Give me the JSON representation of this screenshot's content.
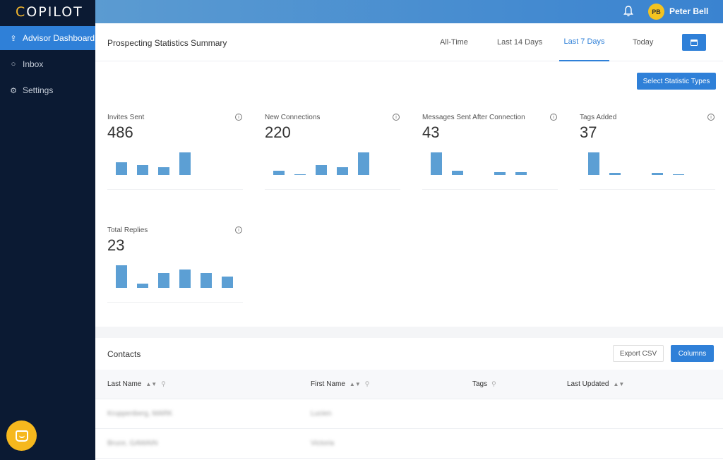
{
  "app": {
    "logo": "COPILOT",
    "logo_first_letter": "C",
    "logo_rest": "OPILOT",
    "accent_color": "#2f80d8",
    "brand_color": "#f5b82e"
  },
  "sidebar": {
    "items": [
      {
        "label": "Advisor Dashboard",
        "icon": "rocket-icon",
        "active": true
      },
      {
        "label": "Inbox",
        "icon": "inbox-icon",
        "active": false
      },
      {
        "label": "Settings",
        "icon": "gear-icon",
        "active": false
      }
    ],
    "chat_icon": "chat-icon"
  },
  "topbar": {
    "bell_icon": "bell-icon",
    "avatar_initials": "PB",
    "user_name": "Peter Bell"
  },
  "stats": {
    "title": "Prospecting Statistics Summary",
    "tabs": [
      {
        "label": "All-Time",
        "active": false
      },
      {
        "label": "Last 14 Days",
        "active": false
      },
      {
        "label": "Last 7 Days",
        "active": true
      },
      {
        "label": "Today",
        "active": false
      }
    ],
    "calendar_icon": "calendar-icon",
    "select_button": "Select Statistic Types",
    "cards": [
      {
        "label": "Invites Sent",
        "value": "486",
        "bars": [
          0.55,
          0.45,
          0.35,
          1.0
        ]
      },
      {
        "label": "New Connections",
        "value": "220",
        "bars": [
          0.2,
          0.02,
          0.45,
          0.35,
          1.0
        ]
      },
      {
        "label": "Messages Sent After Connection",
        "value": "43",
        "bars": [
          1.0,
          0.2,
          0.0,
          0.12,
          0.12
        ]
      },
      {
        "label": "Tags Added",
        "value": "37",
        "bars": [
          1.0,
          0.1,
          0.0,
          0.1,
          0.04
        ]
      },
      {
        "label": "Total Replies",
        "value": "23",
        "bars": [
          1.0,
          0.2,
          0.65,
          0.82,
          0.65,
          0.5
        ]
      }
    ]
  },
  "contacts": {
    "title": "Contacts",
    "export_button": "Export CSV",
    "columns_button": "Columns",
    "columns": [
      "Last Name",
      "First Name",
      "Tags",
      "Last Updated"
    ],
    "rows": [
      {
        "last_name": "Kruppenberg, MARK",
        "first_name": "Lucien"
      },
      {
        "last_name": "Bruce, GAWAIN",
        "first_name": "Victoria"
      }
    ]
  }
}
